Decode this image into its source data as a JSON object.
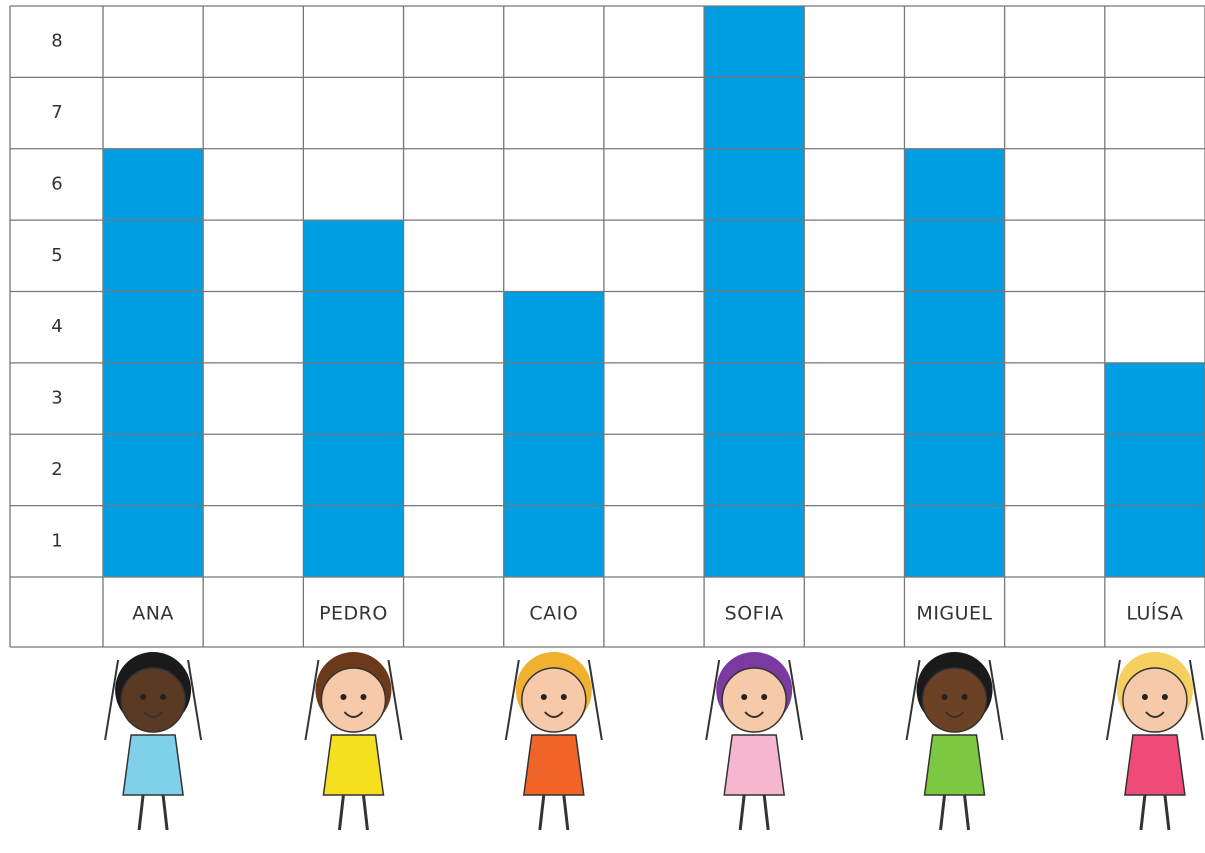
{
  "chart_data": {
    "type": "bar",
    "categories": [
      "ANA",
      "PEDRO",
      "CAIO",
      "SOFIA",
      "MIGUEL",
      "LUÍSA"
    ],
    "values": [
      6,
      5,
      4,
      8,
      6,
      3
    ],
    "color": "#009fe3",
    "ylim": [
      0,
      8
    ],
    "yticks": [
      1,
      2,
      3,
      4,
      5,
      6,
      7,
      8
    ],
    "grid": true
  }
}
